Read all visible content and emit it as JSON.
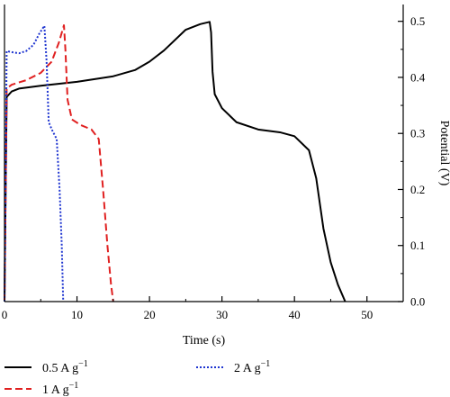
{
  "chart_data": {
    "type": "line",
    "xlabel": "Time (s)",
    "ylabel": "Potential (V)",
    "xlim": [
      0,
      55
    ],
    "ylim": [
      0,
      0.53
    ],
    "x_ticks": [
      0,
      10,
      20,
      30,
      40,
      50
    ],
    "y_ticks": [
      0.0,
      0.1,
      0.2,
      0.3,
      0.4,
      0.5
    ],
    "x_tick_labels": [
      "0",
      "10",
      "20",
      "30",
      "40",
      "50"
    ],
    "y_tick_labels": [
      "0.0",
      "0.1",
      "0.2",
      "0.3",
      "0.4",
      "0.5"
    ],
    "y_axis_side": "right",
    "grid": false,
    "legend_position": "bottom",
    "series": [
      {
        "name": "0.5 A g",
        "name_sup": "−1",
        "color": "#000000",
        "dash": "solid",
        "x": [
          0,
          0.3,
          1,
          2,
          5,
          10,
          15,
          18,
          20,
          22,
          25,
          27,
          28.3,
          28.5,
          28.7,
          29,
          30,
          32,
          35,
          38,
          40,
          42,
          43,
          44,
          45,
          46,
          47
        ],
        "y": [
          0,
          0.365,
          0.375,
          0.38,
          0.385,
          0.392,
          0.402,
          0.413,
          0.428,
          0.448,
          0.485,
          0.495,
          0.499,
          0.48,
          0.41,
          0.37,
          0.345,
          0.32,
          0.307,
          0.302,
          0.295,
          0.27,
          0.22,
          0.13,
          0.07,
          0.03,
          0
        ]
      },
      {
        "name": "1 A g",
        "name_sup": "−1",
        "color": "#e02020",
        "dash": "dashed",
        "x": [
          0,
          0.3,
          1,
          3,
          5,
          6.5,
          7.5,
          8.2,
          8.4,
          8.7,
          9.3,
          10.5,
          12,
          13,
          13.6,
          14.2,
          14.7,
          15
        ],
        "y": [
          0,
          0.38,
          0.387,
          0.395,
          0.408,
          0.428,
          0.462,
          0.493,
          0.45,
          0.36,
          0.325,
          0.315,
          0.307,
          0.29,
          0.2,
          0.1,
          0.03,
          0
        ]
      },
      {
        "name": "2 A g",
        "name_sup": "−1",
        "color": "#1f35d0",
        "dash": "dotted",
        "x": [
          0,
          0.3,
          1,
          2,
          3,
          4,
          4.8,
          5.5,
          5.8,
          6.1,
          6.6,
          7.2,
          7.6,
          7.9,
          8.1
        ],
        "y": [
          0,
          0.447,
          0.445,
          0.443,
          0.447,
          0.458,
          0.478,
          0.492,
          0.43,
          0.32,
          0.305,
          0.29,
          0.2,
          0.1,
          0
        ]
      }
    ]
  }
}
